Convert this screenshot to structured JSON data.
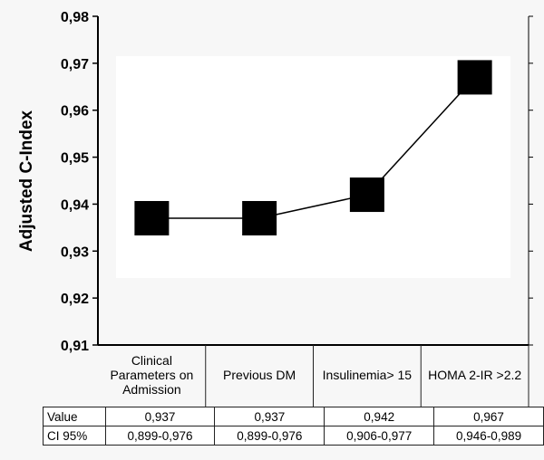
{
  "chart_data": {
    "type": "line",
    "ylabel": "Adjusted C-Index",
    "ylim": [
      0.91,
      0.98
    ],
    "ytick_labels": [
      "0,91",
      "0,92",
      "0,93",
      "0,94",
      "0,95",
      "0,96",
      "0,97",
      "0,98"
    ],
    "categories": [
      [
        "Clinical",
        "Parameters on",
        "Admission"
      ],
      [
        "Previous DM"
      ],
      [
        "Insulinemia> 15"
      ],
      [
        "HOMA 2-IR >2.2"
      ]
    ],
    "values": [
      0.937,
      0.937,
      0.942,
      0.967
    ],
    "marker": "square",
    "table": {
      "rows": [
        {
          "label": "Value",
          "cells": [
            "0,937",
            "0,937",
            "0,942",
            "0,967"
          ]
        },
        {
          "label": "CI 95%",
          "cells": [
            "0,899-0,976",
            "0,899-0,976",
            "0,906-0,977",
            "0,946-0,989"
          ]
        }
      ]
    },
    "colors": {
      "marker": "#000000",
      "line": "#000000",
      "plot_area": "#ffffff",
      "background": "#f7f7f7"
    }
  }
}
